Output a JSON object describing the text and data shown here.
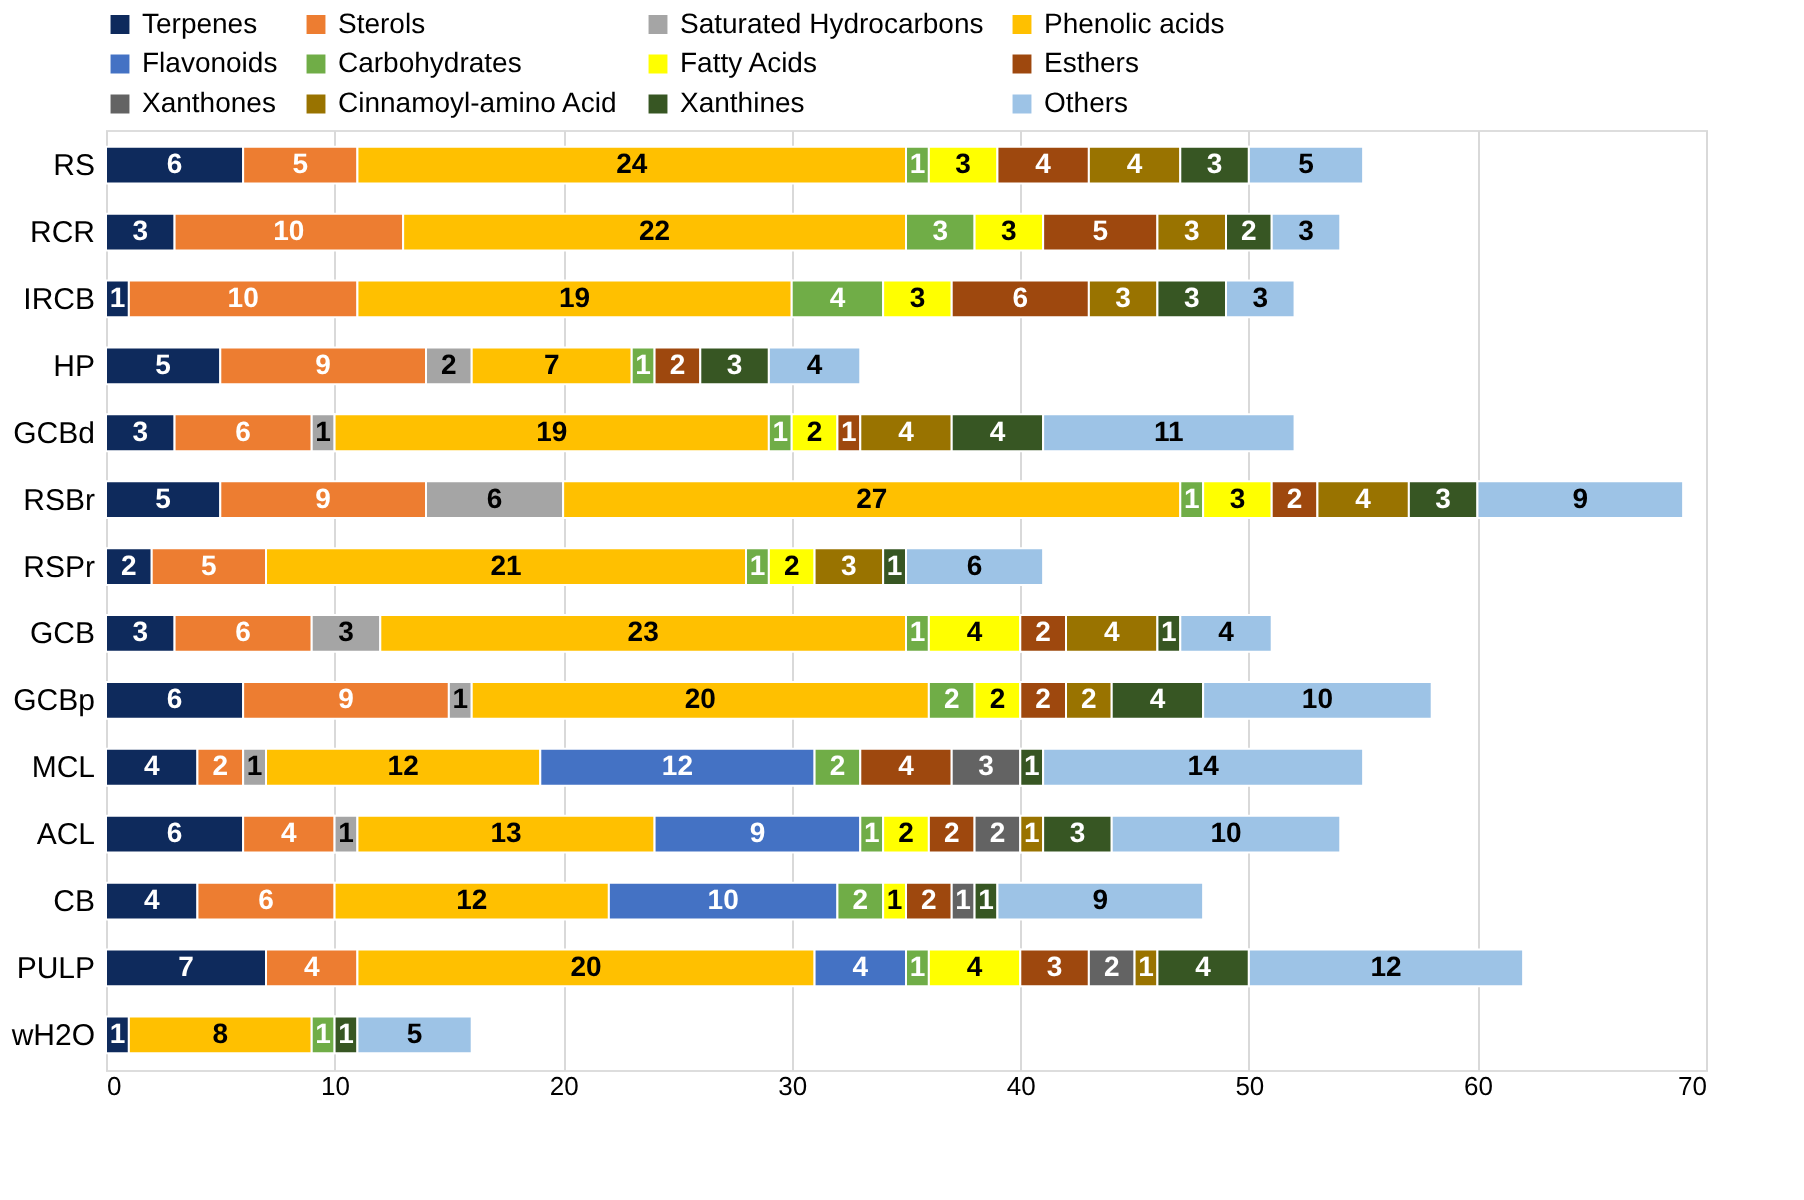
{
  "chart_data": {
    "type": "bar",
    "orientation": "horizontal",
    "stacked": true,
    "data_labels": true,
    "grid": "x",
    "legend": "top",
    "categories": [
      "RS",
      "RCR",
      "IRCB",
      "HP",
      "GCBd",
      "RSBr",
      "RSPr",
      "GCB",
      "GCBp",
      "MCL",
      "ACL",
      "CB",
      "PULP",
      "wH2O"
    ],
    "xlim": [
      0,
      70
    ],
    "xticks": [
      0,
      10,
      20,
      30,
      40,
      50,
      60,
      70
    ],
    "series": [
      {
        "name": "Terpenes",
        "color": "#0e2a5c",
        "values": [
          6,
          3,
          1,
          5,
          3,
          5,
          2,
          3,
          6,
          4,
          6,
          4,
          7,
          1
        ]
      },
      {
        "name": "Sterols",
        "color": "#ed7d31",
        "values": [
          5,
          10,
          10,
          9,
          6,
          9,
          5,
          6,
          9,
          2,
          4,
          6,
          4,
          null
        ]
      },
      {
        "name": "Saturated Hydrocarbons",
        "color": "#a5a5a5",
        "values": [
          null,
          null,
          null,
          2,
          1,
          6,
          null,
          3,
          1,
          1,
          1,
          null,
          null,
          null
        ]
      },
      {
        "name": "Phenolic acids",
        "color": "#ffc000",
        "values": [
          24,
          22,
          19,
          7,
          19,
          27,
          21,
          23,
          20,
          12,
          13,
          12,
          20,
          8
        ]
      },
      {
        "name": "Flavonoids",
        "color": "#4472c4",
        "values": [
          null,
          null,
          null,
          null,
          null,
          null,
          null,
          null,
          null,
          12,
          9,
          10,
          4,
          null
        ]
      },
      {
        "name": "Carbohydrates",
        "color": "#70ad47",
        "values": [
          1,
          3,
          4,
          1,
          1,
          1,
          1,
          1,
          2,
          2,
          1,
          2,
          1,
          1
        ]
      },
      {
        "name": "Fatty Acids",
        "color": "#ffff00",
        "values": [
          3,
          3,
          3,
          null,
          2,
          3,
          2,
          4,
          2,
          null,
          2,
          1,
          4,
          null
        ]
      },
      {
        "name": "Esthers",
        "color": "#9e480e",
        "values": [
          4,
          5,
          6,
          2,
          1,
          2,
          null,
          2,
          2,
          4,
          2,
          2,
          3,
          null
        ]
      },
      {
        "name": "Xanthones",
        "color": "#636363",
        "values": [
          null,
          null,
          null,
          null,
          null,
          null,
          null,
          null,
          null,
          3,
          2,
          1,
          2,
          null
        ]
      },
      {
        "name": "Cinnamoyl-amino Acid",
        "color": "#997300",
        "values": [
          4,
          3,
          3,
          null,
          4,
          4,
          3,
          4,
          2,
          null,
          1,
          null,
          1,
          null
        ]
      },
      {
        "name": "Xanthines",
        "color": "#375623",
        "values": [
          3,
          2,
          3,
          3,
          4,
          3,
          1,
          1,
          4,
          1,
          3,
          1,
          4,
          1
        ]
      },
      {
        "name": "Others",
        "color": "#9dc3e6",
        "values": [
          5,
          3,
          3,
          4,
          11,
          9,
          6,
          4,
          10,
          14,
          10,
          9,
          12,
          5
        ]
      }
    ]
  }
}
